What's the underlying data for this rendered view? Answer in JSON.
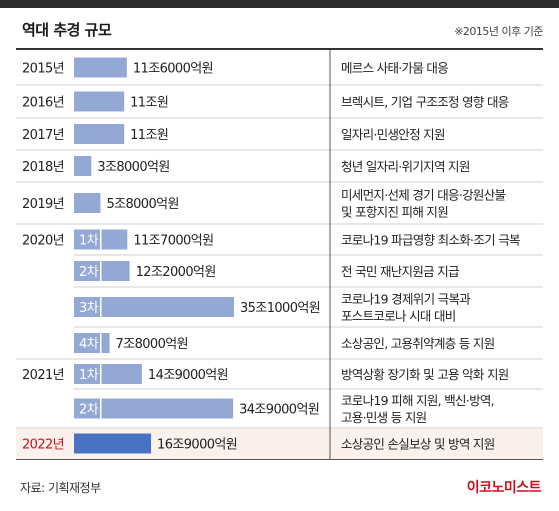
{
  "title": "역대 추경 규모",
  "note": "※2015년 이후 기준",
  "source": "자료: 기획재정부",
  "logo": "이코노미스트",
  "colors": {
    "bar": "#94a8d6",
    "highlight_bar": "#4a72c4",
    "highlight_bg": "#fbf1ec",
    "highlight_year": "#c8101e",
    "tag_text": "#ffffff"
  },
  "chart_data": {
    "type": "bar",
    "orientation": "horizontal",
    "unit": "억원",
    "rows": [
      {
        "year": "2015년",
        "tag": "",
        "value": 116000,
        "label": "11조6000억원",
        "purpose": [
          "메르스 사태·가뭄 대응"
        ],
        "highlight": false
      },
      {
        "year": "2016년",
        "tag": "",
        "value": 110000,
        "label": "11조원",
        "purpose": [
          "브렉시트, 기업 구조조정 영향 대응"
        ],
        "highlight": false
      },
      {
        "year": "2017년",
        "tag": "",
        "value": 110000,
        "label": "11조원",
        "purpose": [
          "일자리·민생안정 지원"
        ],
        "highlight": false
      },
      {
        "year": "2018년",
        "tag": "",
        "value": 38000,
        "label": "3조8000억원",
        "purpose": [
          "청년 일자리·위기지역 지원"
        ],
        "highlight": false
      },
      {
        "year": "2019년",
        "tag": "",
        "value": 58000,
        "label": "5조8000억원",
        "purpose": [
          "미세먼지·선제 경기 대응·강원산불",
          "및 포항지진 피해 지원"
        ],
        "highlight": false
      },
      {
        "year": "2020년",
        "tag": "1차",
        "value": 117000,
        "label": "11조7000억원",
        "purpose": [
          "코로나19 파급영향 최소화·조기 극복"
        ],
        "highlight": false
      },
      {
        "year": "",
        "tag": "2차",
        "value": 122000,
        "label": "12조2000억원",
        "purpose": [
          "전 국민 재난지원금 지급"
        ],
        "highlight": false
      },
      {
        "year": "",
        "tag": "3차",
        "value": 351000,
        "label": "35조1000억원",
        "purpose": [
          "코로나19 경제위기 극복과",
          "포스트코로나 시대 대비"
        ],
        "highlight": false
      },
      {
        "year": "",
        "tag": "4차",
        "value": 78000,
        "label": "7조8000억원",
        "purpose": [
          "소상공인, 고용취약계층 등 지원"
        ],
        "highlight": false
      },
      {
        "year": "2021년",
        "tag": "1차",
        "value": 149000,
        "label": "14조9000억원",
        "purpose": [
          "방역상황 장기화 및 고용 악화 지원"
        ],
        "highlight": false
      },
      {
        "year": "",
        "tag": "2차",
        "value": 349000,
        "label": "34조9000억원",
        "purpose": [
          "코로나19 피해 지원, 백신·방역,",
          "고용·민생 등 지원"
        ],
        "highlight": false
      },
      {
        "year": "2022년",
        "tag": "",
        "value": 169000,
        "label": "16조9000억원",
        "purpose": [
          "소상공인 손실보상 및 방역 지원"
        ],
        "highlight": true
      }
    ]
  }
}
